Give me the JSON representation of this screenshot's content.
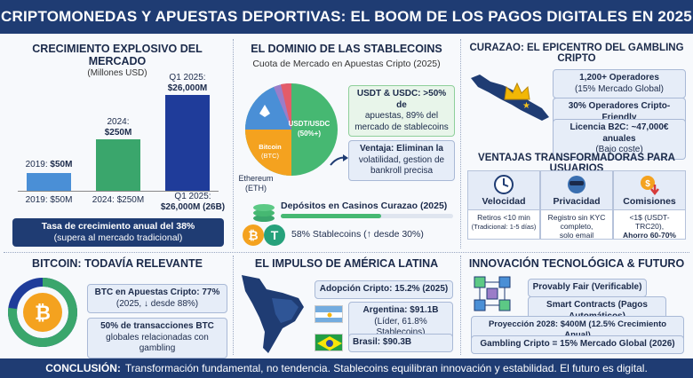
{
  "header": {
    "title": "CRIPTOMONEDAS Y APUESTAS DEPORTIVAS: EL BOOM DE LOS PAGOS DIGITALES EN 2025"
  },
  "growth": {
    "title": "CRECIMIENTO EXPLOSIVO DEL MERCADO",
    "subtitle": "(Millones USD)",
    "bars": [
      {
        "top_label_a": "2019: ",
        "top_label_b": "$50M",
        "bottom_label": "2019: $50M",
        "value": 50,
        "color": "#4a8fd6"
      },
      {
        "top_label_a": "2024:",
        "top_label_b": "$250M",
        "bottom_label": "2024: $250M",
        "value": 250,
        "color": "#3aa66c"
      },
      {
        "top_label_a": "Q1 2025:",
        "top_label_b": "$26,000M",
        "bottom_label": "Q1 2025:",
        "bottom_label_2": "$26,000M (26B)",
        "value": 26000,
        "color": "#1f3c9a"
      }
    ],
    "rate_line1": "Tasa de crecimiento anual del 38%",
    "rate_line2": "(supera al mercado tradicional)"
  },
  "stable": {
    "title": "EL DOMINIO DE LAS STABLECOINS",
    "subtitle": "Cuota de Mercado en Apuestas Cripto (2025)",
    "pie_usdt": "USDT/USDC",
    "pie_usdt_pct": "(50%+)",
    "pie_btc": "Bitcoin",
    "pie_btc_sub": "(BTC)",
    "eth_label": "Ethereum",
    "eth_sub": "(ETH)",
    "share_box_a": "USDT & USDC: >50% de",
    "share_box_b": "apuestas, 89% del",
    "share_box_c": "mercado de stablecoins",
    "adv_a": "Ventaja: Eliminan la",
    "adv_b": "volatilidad, gestion de",
    "adv_c": "bankroll precisa",
    "deposits_title": "Depósitos en Casinos Curazao (2025)",
    "deposits_text": "58% Stablecoins (↑ desde 30%)",
    "deposits_pct": 58
  },
  "curacao": {
    "title": "CURAZAO: EL EPICENTRO DEL GAMBLING CRIPTO",
    "box1_a": "1,200+ Operadores",
    "box1_b": "(15% Mercado Global)",
    "box2": "30% Operadores Cripto-Friendly",
    "box3_a": "Licencia B2C: ~47,000€ anuales",
    "box3_b": "(Bajo coste)"
  },
  "advantages": {
    "title": "VENTAJAS TRANSFORMADORAS PARA USUARIOS",
    "cols": [
      {
        "head": "Velocidad",
        "line1": "Retiros <10 min",
        "line2": "(Tradicional: 1-5 días)"
      },
      {
        "head": "Privacidad",
        "line1": "Registro sin KYC",
        "line2": "completo,",
        "line3": "solo email"
      },
      {
        "head": "Comisiones",
        "line1": "<1$ (USDT-TRC20),",
        "line2": "Ahorro 60-70%"
      }
    ]
  },
  "bitcoin": {
    "title": "BITCOIN: TODAVÍA RELEVANTE",
    "box1_a": "BTC en Apuestas Cripto: 77%",
    "box1_b": "(2025, ↓ desde 88%)",
    "box2_a": "50% de transacciones BTC",
    "box2_b": "globales relacionadas con gambling",
    "share": 77
  },
  "latam": {
    "title": "EL IMPULSO DE AMÉRICA LATINA",
    "adoption": "Adopción Cripto: 15.2% (2025)",
    "argentina_a": "Argentina: $91.1B",
    "argentina_b": "(Líder, 61.8% Stablecoins)",
    "brasil": "Brasil: $90.3B"
  },
  "innovation": {
    "title": "INNOVACIÓN TECNOLÓGICA & FUTURO",
    "box1": "Provably Fair (Verificable)",
    "box2": "Smart Contracts (Pagos Automáticos)",
    "box3": "Proyección 2028: $400M (12.5% Crecimiento Anual)",
    "box4": "Gambling Cripto = 15% Mercado Global (2026)"
  },
  "footer": {
    "label": "CONCLUSIÓN:",
    "text": "Transformación fundamental, no tendencia. Stablecoins equilibran innovación y estabilidad. El futuro es digital."
  }
}
